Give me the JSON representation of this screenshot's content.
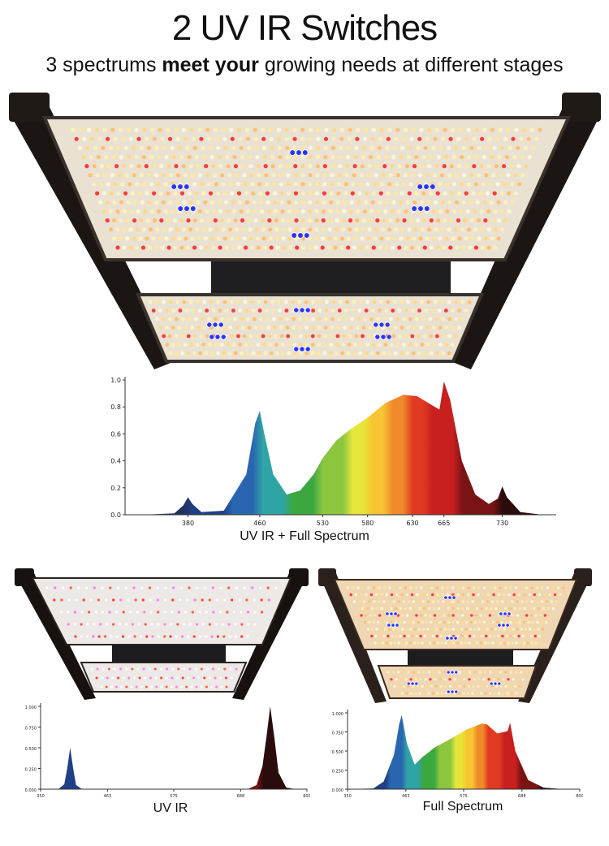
{
  "header": {
    "title": "2 UV IR Switches",
    "subtitle_pre": "3 spectrums ",
    "subtitle_bold": "meet your",
    "subtitle_post": " growing needs at different stages"
  },
  "captions": {
    "main": "UV IR + Full Spectrum",
    "left": "UV IR",
    "right": "Full Spectrum"
  },
  "chart_data": [
    {
      "type": "area",
      "title": "UV IR + Full Spectrum",
      "xticks": [
        "380",
        "460",
        "530",
        "580",
        "630",
        "665",
        "730"
      ],
      "yticks": [
        "0.0",
        "0.2",
        "0.4",
        "0.6",
        "0.8",
        "1.0"
      ],
      "ylim": [
        0,
        1.0
      ],
      "x": [
        330,
        365,
        375,
        380,
        385,
        395,
        420,
        445,
        455,
        460,
        465,
        475,
        490,
        505,
        520,
        530,
        545,
        560,
        580,
        600,
        620,
        635,
        650,
        660,
        665,
        672,
        685,
        700,
        715,
        725,
        730,
        735,
        750,
        775
      ],
      "y": [
        0,
        0.01,
        0.07,
        0.13,
        0.08,
        0.02,
        0.03,
        0.3,
        0.68,
        0.77,
        0.6,
        0.3,
        0.15,
        0.18,
        0.3,
        0.42,
        0.55,
        0.63,
        0.72,
        0.83,
        0.89,
        0.88,
        0.82,
        0.78,
        0.99,
        0.85,
        0.4,
        0.15,
        0.08,
        0.12,
        0.21,
        0.13,
        0.02,
        0
      ]
    },
    {
      "type": "area",
      "title": "UV IR",
      "xticks": [
        "350",
        "463",
        "575",
        "688",
        "800"
      ],
      "yticks": [
        "0.000",
        "0.250",
        "0.500",
        "0.750",
        "1.000"
      ],
      "ylim": [
        0,
        1.0
      ],
      "x": [
        350,
        380,
        390,
        395,
        400,
        405,
        410,
        420,
        700,
        715,
        725,
        732,
        738,
        745,
        752,
        765,
        780
      ],
      "y": [
        0,
        0,
        0.06,
        0.25,
        0.5,
        0.25,
        0.05,
        0,
        0,
        0.05,
        0.28,
        0.65,
        1.0,
        0.62,
        0.2,
        0.02,
        0
      ]
    },
    {
      "type": "area",
      "title": "Full Spectrum",
      "xticks": [
        "350",
        "463",
        "575",
        "688",
        "800"
      ],
      "yticks": [
        "0.000",
        "0.250",
        "0.500",
        "0.750",
        "1.000"
      ],
      "ylim": [
        0,
        1.0
      ],
      "x": [
        350,
        400,
        420,
        440,
        450,
        455,
        465,
        480,
        495,
        520,
        550,
        580,
        610,
        620,
        640,
        660,
        665,
        675,
        700,
        730,
        770
      ],
      "y": [
        0,
        0.01,
        0.1,
        0.45,
        0.85,
        0.97,
        0.6,
        0.32,
        0.42,
        0.55,
        0.66,
        0.78,
        0.86,
        0.85,
        0.73,
        0.76,
        0.87,
        0.5,
        0.12,
        0.02,
        0
      ]
    }
  ],
  "colors": {
    "frame": "#1b1513",
    "board": "#e9e2d3",
    "led_warm": "#fff0b8",
    "led_red": "#ff3b3b",
    "led_blue": "#2b34ff",
    "led_pink": "#ff5ce8",
    "axis": "#333333"
  }
}
